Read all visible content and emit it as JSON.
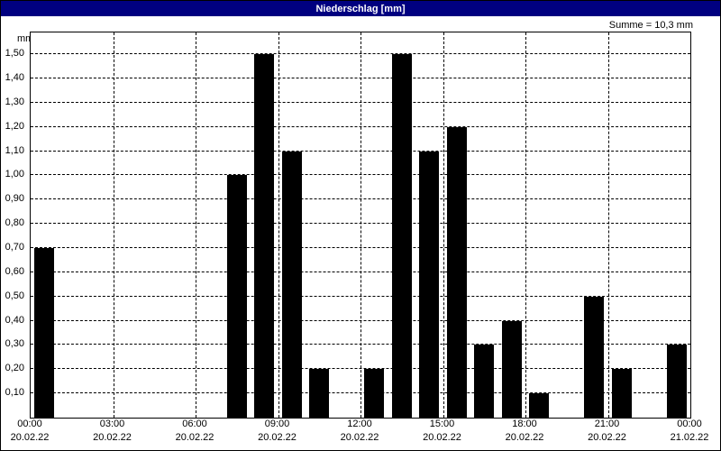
{
  "title_bar": {
    "text": "Niederschlag [mm]"
  },
  "chart_data": {
    "type": "bar",
    "title": "Niederschlag [mm]",
    "ylabel": "mm",
    "annotation": "Summe = 10,3 mm",
    "xlim": [
      0,
      24
    ],
    "ylim": [
      0,
      1.59
    ],
    "grid": true,
    "legend": "none",
    "bar_color": "#000000",
    "bar_width_hours": 0.72,
    "bars": [
      {
        "hour_start": 0,
        "value": 0.7
      },
      {
        "hour_start": 7,
        "value": 1.0
      },
      {
        "hour_start": 8,
        "value": 1.5
      },
      {
        "hour_start": 9,
        "value": 1.1
      },
      {
        "hour_start": 10,
        "value": 0.2
      },
      {
        "hour_start": 12,
        "value": 0.2
      },
      {
        "hour_start": 13,
        "value": 1.5
      },
      {
        "hour_start": 14,
        "value": 1.1
      },
      {
        "hour_start": 15,
        "value": 1.2
      },
      {
        "hour_start": 16,
        "value": 0.3
      },
      {
        "hour_start": 17,
        "value": 0.4
      },
      {
        "hour_start": 18,
        "value": 0.1
      },
      {
        "hour_start": 20,
        "value": 0.5
      },
      {
        "hour_start": 21,
        "value": 0.2
      },
      {
        "hour_start": 23,
        "value": 0.3
      }
    ],
    "x_ticks": [
      {
        "hour": 0,
        "time": "00:00",
        "date": "20.02.22"
      },
      {
        "hour": 3,
        "time": "03:00",
        "date": "20.02.22"
      },
      {
        "hour": 6,
        "time": "06:00",
        "date": "20.02.22"
      },
      {
        "hour": 9,
        "time": "09:00",
        "date": "20.02.22"
      },
      {
        "hour": 12,
        "time": "12:00",
        "date": "20.02.22"
      },
      {
        "hour": 15,
        "time": "15:00",
        "date": "20.02.22"
      },
      {
        "hour": 18,
        "time": "18:00",
        "date": "20.02.22"
      },
      {
        "hour": 21,
        "time": "21:00",
        "date": "20.02.22"
      },
      {
        "hour": 24,
        "time": "00:00",
        "date": "21.02.22"
      }
    ],
    "y_ticks": [
      {
        "value": 0.1,
        "label": "0,10"
      },
      {
        "value": 0.2,
        "label": "0,20"
      },
      {
        "value": 0.3,
        "label": "0,30"
      },
      {
        "value": 0.4,
        "label": "0,40"
      },
      {
        "value": 0.5,
        "label": "0,50"
      },
      {
        "value": 0.6,
        "label": "0,60"
      },
      {
        "value": 0.7,
        "label": "0,70"
      },
      {
        "value": 0.8,
        "label": "0,80"
      },
      {
        "value": 0.9,
        "label": "0,90"
      },
      {
        "value": 1.0,
        "label": "1,00"
      },
      {
        "value": 1.1,
        "label": "1,10"
      },
      {
        "value": 1.2,
        "label": "1,20"
      },
      {
        "value": 1.3,
        "label": "1,30"
      },
      {
        "value": 1.4,
        "label": "1,40"
      },
      {
        "value": 1.5,
        "label": "1,50"
      }
    ],
    "colors": {
      "title_bar_bg": "#000080",
      "title_text": "#ffffff",
      "plot_bg": "#ffffff",
      "grid_color": "#000000"
    }
  }
}
